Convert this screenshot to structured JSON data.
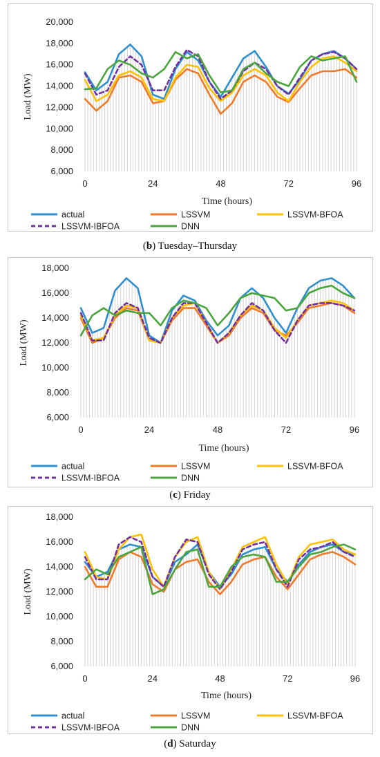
{
  "chart_data": [
    {
      "type": "line",
      "panel_letter": "b",
      "caption": " Tuesday–Thursday",
      "xlabel": "Time (hours)",
      "ylabel": "Load (MW)",
      "xticks": [
        "0",
        "24",
        "48",
        "72",
        "96"
      ],
      "yticks": [
        "6,000",
        "8,000",
        "10,000",
        "12,000",
        "14,000",
        "16,000",
        "18,000",
        "20,000"
      ],
      "ylim": [
        6000,
        20000
      ],
      "xlim": [
        0,
        96
      ],
      "x": [
        0,
        4,
        8,
        12,
        16,
        20,
        24,
        28,
        32,
        36,
        40,
        44,
        48,
        52,
        56,
        60,
        64,
        68,
        72,
        76,
        80,
        84,
        88,
        92,
        96
      ],
      "series": [
        {
          "name": "actual",
          "color": "#2e8fd0",
          "dashed": false,
          "values": [
            15300,
            13600,
            14400,
            17000,
            17900,
            16800,
            13200,
            12800,
            15600,
            17200,
            16400,
            14400,
            13000,
            14800,
            16600,
            17300,
            15800,
            14000,
            13300,
            14600,
            16400,
            17000,
            17300,
            16600,
            15600
          ]
        },
        {
          "name": "LSSVM",
          "color": "#f07a2a",
          "dashed": false,
          "values": [
            12800,
            11700,
            12600,
            14800,
            15000,
            14400,
            12400,
            12600,
            14600,
            15600,
            15200,
            13200,
            11400,
            12400,
            14400,
            15000,
            14400,
            13000,
            12500,
            13800,
            15000,
            15400,
            15400,
            15600,
            14800
          ]
        },
        {
          "name": "LSSVM-BFOA",
          "color": "#ffc000",
          "dashed": false,
          "values": [
            14600,
            12600,
            13200,
            15000,
            15400,
            14800,
            12800,
            12600,
            14800,
            16000,
            15800,
            13800,
            12600,
            13400,
            15000,
            15600,
            15000,
            13400,
            12600,
            14400,
            15800,
            16600,
            16800,
            16200,
            15400
          ]
        },
        {
          "name": "LSSVM-IBFOA",
          "color": "#7030a0",
          "dashed": true,
          "values": [
            15200,
            13200,
            13600,
            15800,
            16800,
            16000,
            13600,
            13600,
            15800,
            17400,
            16800,
            14400,
            12800,
            13600,
            15400,
            16200,
            15600,
            14000,
            13200,
            14800,
            16400,
            17000,
            17200,
            16600,
            15600
          ]
        },
        {
          "name": "DNN",
          "color": "#4aa63c",
          "dashed": false,
          "values": [
            13700,
            13800,
            15600,
            16400,
            16000,
            15200,
            14800,
            15600,
            17200,
            16600,
            17000,
            15000,
            13400,
            13600,
            15600,
            16200,
            15200,
            14400,
            14000,
            15800,
            16800,
            16400,
            16600,
            16800,
            14400
          ]
        }
      ]
    },
    {
      "type": "line",
      "panel_letter": "c",
      "caption": " Friday",
      "xlabel": "Time (hours)",
      "ylabel": "Load (MW)",
      "xticks": [
        "0",
        "24",
        "48",
        "72",
        "96"
      ],
      "yticks": [
        "6,000",
        "8,000",
        "10,000",
        "12,000",
        "14,000",
        "16,000",
        "18,000"
      ],
      "ylim": [
        6000,
        18000
      ],
      "xlim": [
        0,
        96
      ],
      "x": [
        0,
        4,
        8,
        12,
        16,
        20,
        24,
        28,
        32,
        36,
        40,
        44,
        48,
        52,
        56,
        60,
        64,
        68,
        72,
        76,
        80,
        84,
        88,
        92,
        96
      ],
      "series": [
        {
          "name": "actual",
          "color": "#2e8fd0",
          "dashed": false,
          "values": [
            14800,
            12800,
            13200,
            16200,
            17200,
            16400,
            12600,
            12000,
            14600,
            15800,
            15400,
            13800,
            12600,
            13400,
            15600,
            16400,
            15600,
            14000,
            12800,
            14800,
            16400,
            17000,
            17200,
            16600,
            15600
          ]
        },
        {
          "name": "LSSVM",
          "color": "#f07a2a",
          "dashed": false,
          "values": [
            14000,
            12000,
            12400,
            14000,
            14800,
            14600,
            12200,
            12000,
            13800,
            14800,
            14800,
            13400,
            12000,
            12600,
            14000,
            14800,
            14400,
            13000,
            12600,
            13600,
            14800,
            15000,
            15200,
            15000,
            14400
          ]
        },
        {
          "name": "LSSVM-BFOA",
          "color": "#ffc000",
          "dashed": false,
          "values": [
            14200,
            12200,
            12400,
            14200,
            15000,
            14800,
            12200,
            12000,
            14000,
            15000,
            15200,
            13600,
            12000,
            12800,
            14200,
            15000,
            14600,
            13200,
            12400,
            13800,
            15000,
            15200,
            15400,
            15200,
            14600
          ]
        },
        {
          "name": "LSSVM-IBFOA",
          "color": "#7030a0",
          "dashed": true,
          "values": [
            14400,
            12200,
            12200,
            14400,
            15200,
            14800,
            12400,
            12000,
            14000,
            15200,
            15200,
            13600,
            12000,
            12800,
            14200,
            15200,
            14600,
            13000,
            12000,
            13800,
            15000,
            15200,
            15200,
            15000,
            14600
          ]
        },
        {
          "name": "DNN",
          "color": "#4aa63c",
          "dashed": false,
          "values": [
            12600,
            14200,
            14800,
            14200,
            14600,
            14400,
            14400,
            13400,
            14800,
            15400,
            15200,
            14800,
            13400,
            14400,
            15600,
            16000,
            15800,
            15600,
            14600,
            14800,
            16000,
            16400,
            16600,
            16000,
            15600
          ]
        }
      ]
    },
    {
      "type": "line",
      "panel_letter": "d",
      "caption": " Saturday",
      "xlabel": "Time (hours)",
      "ylabel": "Load (MW)",
      "xticks": [
        "0",
        "24",
        "48",
        "72",
        "96"
      ],
      "yticks": [
        "6,000",
        "8,000",
        "10,000",
        "12,000",
        "14,000",
        "16,000",
        "18,000"
      ],
      "ylim": [
        6000,
        18000
      ],
      "xlim": [
        0,
        96
      ],
      "x": [
        0,
        4,
        8,
        12,
        16,
        20,
        24,
        28,
        32,
        36,
        40,
        44,
        48,
        52,
        56,
        60,
        64,
        68,
        72,
        76,
        80,
        84,
        88,
        92,
        96
      ],
      "series": [
        {
          "name": "actual",
          "color": "#2e8fd0",
          "dashed": false,
          "values": [
            14400,
            13200,
            13600,
            15400,
            15800,
            15600,
            13200,
            12400,
            14400,
            15000,
            15800,
            13600,
            12400,
            13400,
            15000,
            15400,
            15600,
            13800,
            12800,
            14200,
            15200,
            15600,
            15800,
            15200,
            15000
          ]
        },
        {
          "name": "LSSVM",
          "color": "#f07a2a",
          "dashed": false,
          "values": [
            14000,
            12400,
            12400,
            14600,
            15200,
            14800,
            12600,
            12000,
            13800,
            14400,
            14600,
            12800,
            11800,
            12800,
            14200,
            14600,
            14800,
            13200,
            12200,
            13400,
            14600,
            15000,
            15200,
            14800,
            14200
          ]
        },
        {
          "name": "LSSVM-BFOA",
          "color": "#ffc000",
          "dashed": false,
          "values": [
            15200,
            13200,
            13000,
            15400,
            16400,
            16600,
            13800,
            12400,
            14800,
            16000,
            16400,
            13600,
            12200,
            13800,
            15600,
            16000,
            16400,
            14200,
            12600,
            14800,
            15800,
            16000,
            16200,
            15400,
            15000
          ]
        },
        {
          "name": "LSSVM-IBFOA",
          "color": "#7030a0",
          "dashed": true,
          "values": [
            14800,
            13000,
            13000,
            15800,
            16400,
            16000,
            13200,
            12400,
            14800,
            16200,
            16000,
            13400,
            12200,
            13600,
            15400,
            15800,
            16000,
            13800,
            12400,
            14600,
            15400,
            15600,
            16000,
            15200,
            14800
          ]
        },
        {
          "name": "DNN",
          "color": "#4aa63c",
          "dashed": false,
          "values": [
            13000,
            13800,
            13400,
            14800,
            15200,
            15600,
            11800,
            12200,
            13800,
            15200,
            15400,
            12400,
            12400,
            14000,
            14800,
            15000,
            14800,
            12800,
            12800,
            14000,
            15000,
            15200,
            15600,
            15800,
            15400
          ]
        }
      ]
    }
  ]
}
